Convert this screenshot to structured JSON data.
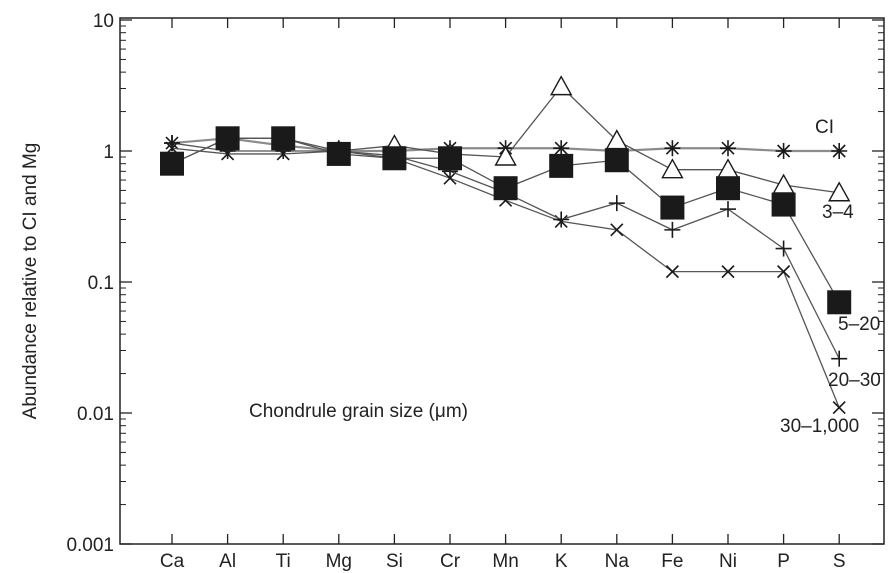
{
  "chart_data": {
    "type": "line",
    "title": "",
    "ylabel": "Abundance relative to CI and Mg",
    "xlabel": "",
    "annotation": "Chondrule grain size (μm)",
    "yscale": "log",
    "ylim": [
      0.001,
      10
    ],
    "yticks": [
      {
        "value": 10,
        "label": "10"
      },
      {
        "value": 1,
        "label": "1"
      },
      {
        "value": 0.1,
        "label": "0.1"
      },
      {
        "value": 0.01,
        "label": "0.01"
      },
      {
        "value": 0.001,
        "label": "0.001"
      }
    ],
    "categories": [
      "Ca",
      "Al",
      "Ti",
      "Mg",
      "Si",
      "Cr",
      "Mn",
      "K",
      "Na",
      "Fe",
      "Ni",
      "P",
      "S"
    ],
    "grid": false,
    "series": [
      {
        "name": "CI",
        "marker": "asterisk",
        "values": [
          1.15,
          1.25,
          1.1,
          1.0,
          1.0,
          1.05,
          1.05,
          1.05,
          1.0,
          1.05,
          1.05,
          1.0,
          1.0
        ]
      },
      {
        "name": "3–4",
        "marker": "open-triangle",
        "values": [
          0.8,
          1.25,
          1.25,
          1.0,
          1.1,
          0.95,
          0.9,
          3.1,
          1.2,
          0.72,
          0.72,
          0.55,
          0.48
        ]
      },
      {
        "name": "5–20",
        "marker": "filled-square",
        "values": [
          0.8,
          1.25,
          1.25,
          0.95,
          0.88,
          0.88,
          0.52,
          0.77,
          0.85,
          0.37,
          0.52,
          0.39,
          0.07
        ]
      },
      {
        "name": "20–30",
        "marker": "plus",
        "values": [
          1.15,
          1.0,
          1.0,
          1.0,
          0.92,
          0.7,
          0.48,
          0.3,
          0.4,
          0.25,
          0.36,
          0.18,
          0.026
        ]
      },
      {
        "name": "30–1,000",
        "marker": "cross",
        "values": [
          1.05,
          0.95,
          0.95,
          1.0,
          0.88,
          0.62,
          0.42,
          0.29,
          0.25,
          0.12,
          0.12,
          0.12,
          0.011
        ]
      }
    ],
    "colors": {
      "line": "#555555",
      "marker": "#1a1a1a",
      "ci_line": "#8c8c8c",
      "axis": "#222222",
      "background": "#ffffff"
    }
  }
}
